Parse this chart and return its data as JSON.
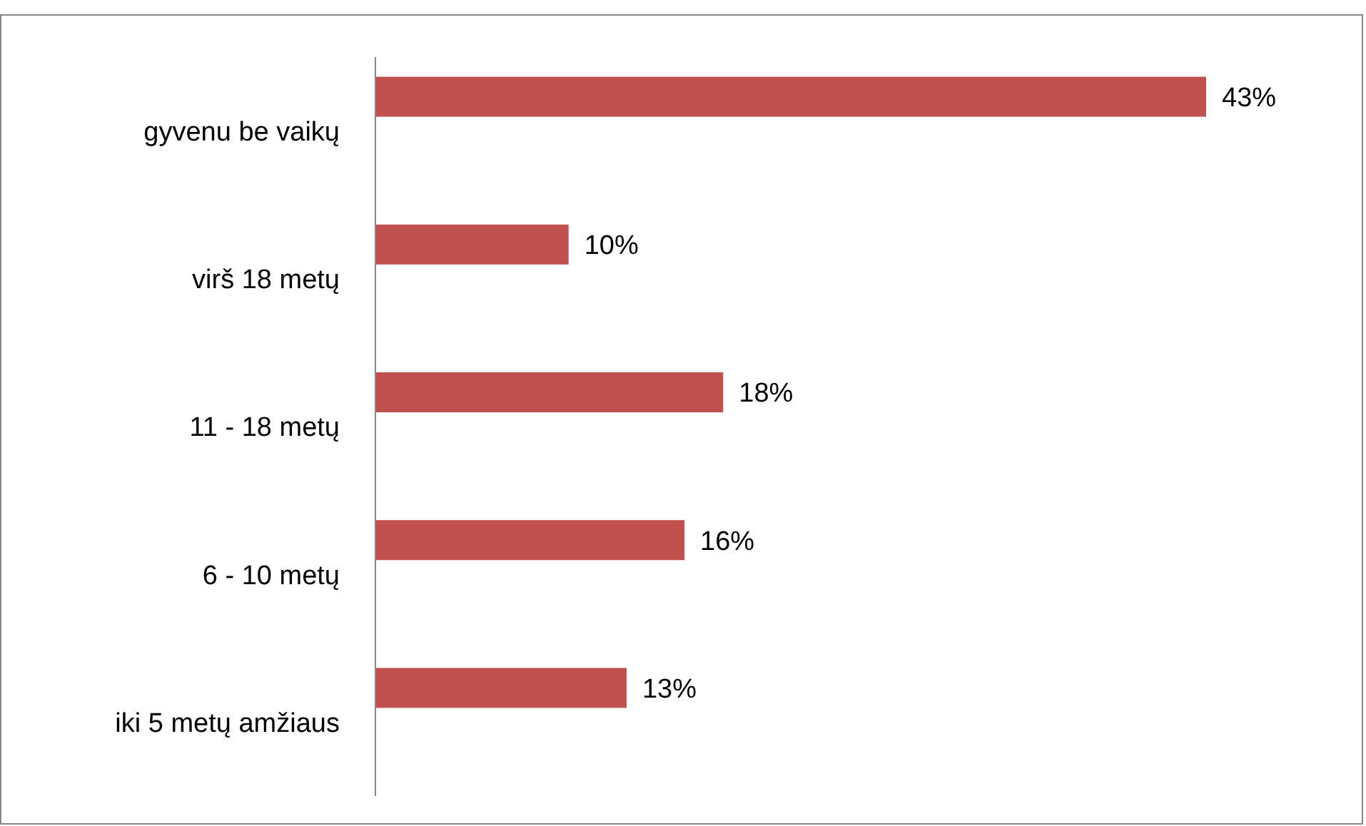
{
  "chart_data": {
    "type": "bar",
    "orientation": "horizontal",
    "categories": [
      "gyvenu be vaikų",
      "virš 18 metų",
      "11 - 18 metų",
      "6 - 10 metų",
      "iki 5 metų amžiaus"
    ],
    "values": [
      43,
      10,
      18,
      16,
      13
    ],
    "value_labels": [
      "43%",
      "10%",
      "18%",
      "16%",
      "13%"
    ],
    "color": "#c0504d"
  }
}
